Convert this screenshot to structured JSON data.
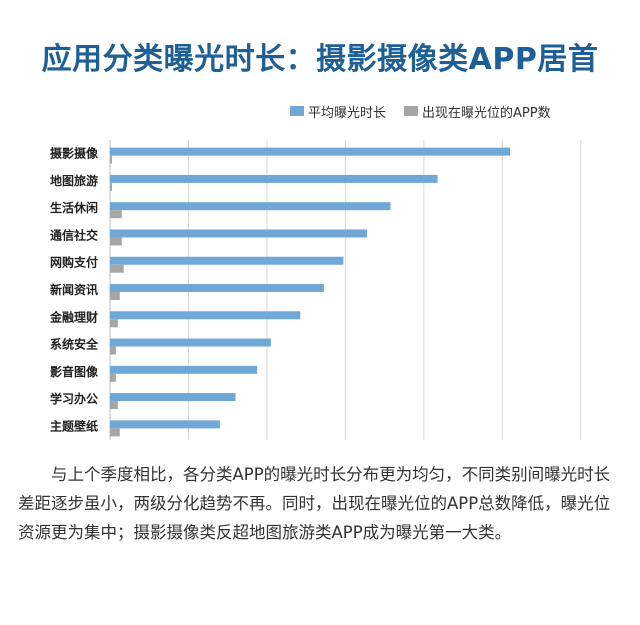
{
  "title": "应用分类曝光时长：摄影摄像类APP居首",
  "legend": {
    "series_1": "平均曝光时长",
    "series_2": "出现在曝光位的APP数"
  },
  "colors": {
    "title": "#1e5f96",
    "series_1": "#6fa8d6",
    "series_2": "#a6a6a6",
    "grid": "#d9d9d9"
  },
  "chart_data": {
    "type": "bar",
    "orientation": "horizontal",
    "title": "应用分类曝光时长：摄影摄像类APP居首",
    "categories": [
      "摄影摄像",
      "地图旅游",
      "生活休闲",
      "通信社交",
      "网购支付",
      "新闻资讯",
      "金融理财",
      "系统安全",
      "影音图像",
      "学习办公",
      "主题壁纸"
    ],
    "series": [
      {
        "name": "平均曝光时长",
        "values": [
          102,
          83.5,
          71.5,
          65.5,
          59.5,
          54.5,
          48.5,
          41,
          37.5,
          32,
          28
        ]
      },
      {
        "name": "出现在曝光位的APP数",
        "values": [
          0.5,
          0.5,
          3,
          3,
          3.5,
          2.5,
          2,
          1.5,
          1.5,
          2,
          2.5
        ]
      }
    ],
    "xlim": [
      0,
      130
    ],
    "grid": true,
    "legend_position": "top-right"
  },
  "paragraph": "与上个季度相比，各分类APP的曝光时长分布更为均匀，不同类别间曝光时长差距逐步虽小，两级分化趋势不再。同时，出现在曝光位的APP总数降低，曝光位资源更为集中；摄影摄像类反超地图旅游类APP成为曝光第一大类。"
}
